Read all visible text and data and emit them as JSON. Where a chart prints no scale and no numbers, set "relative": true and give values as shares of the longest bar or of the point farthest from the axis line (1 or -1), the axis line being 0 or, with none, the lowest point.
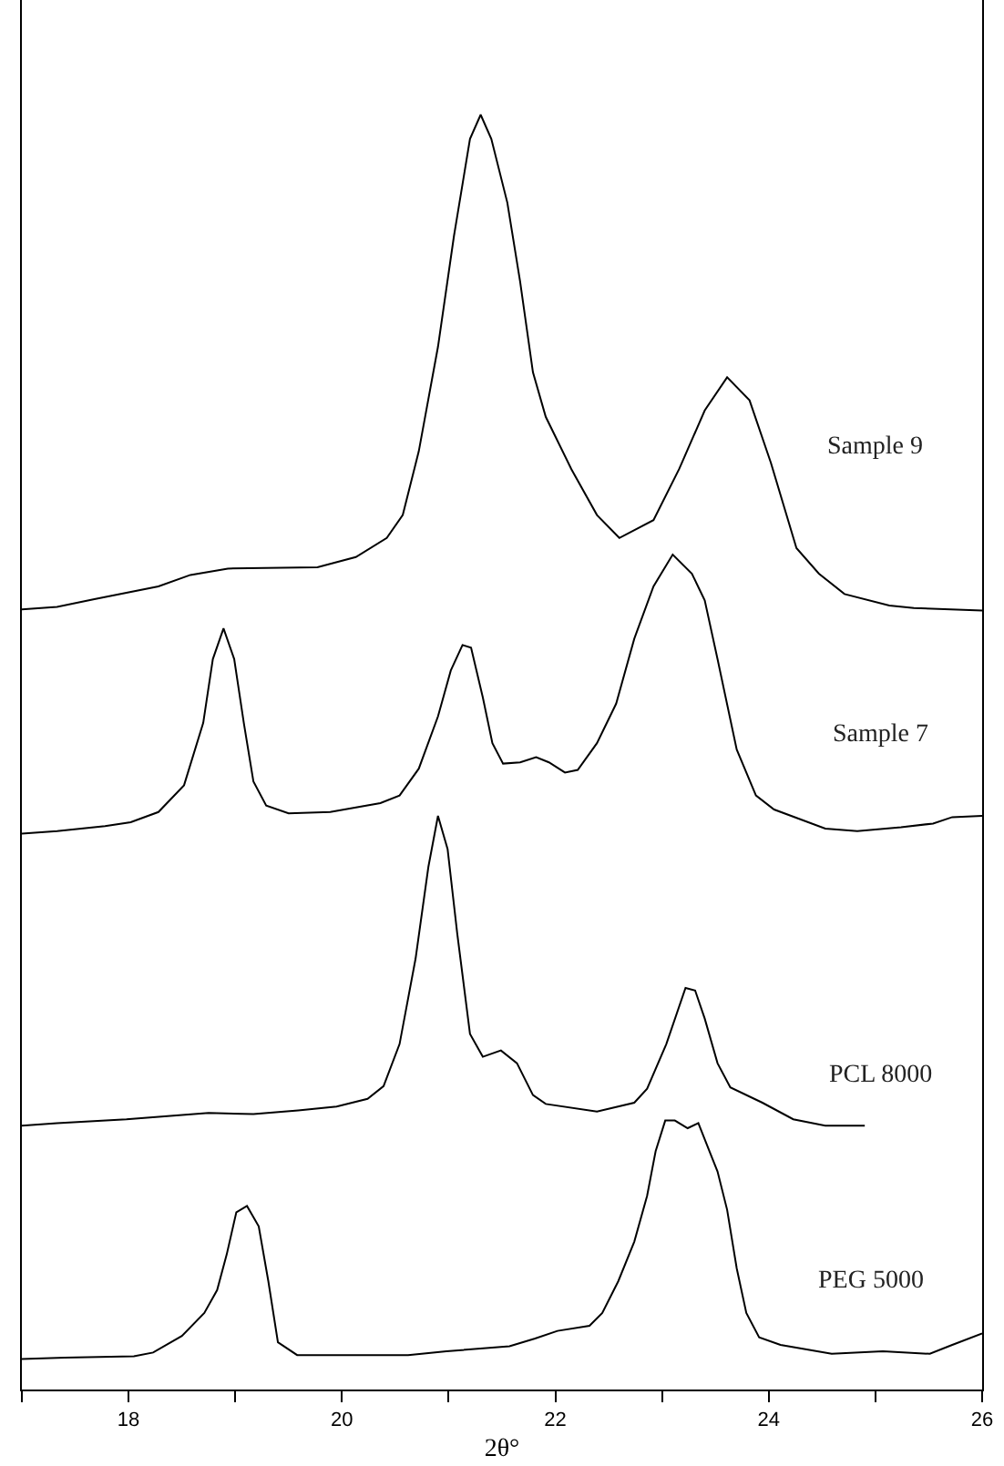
{
  "chart_data": {
    "type": "line",
    "relative": true,
    "xlabel": "2θ°",
    "xlim": [
      17,
      26
    ],
    "xticks": [
      {
        "value": 17,
        "label": null
      },
      18,
      {
        "value": 19,
        "label": null
      },
      20,
      {
        "value": 21,
        "label": null
      },
      22,
      {
        "value": 23,
        "label": null
      },
      24,
      {
        "value": 25,
        "label": null
      },
      26
    ],
    "legend": false,
    "marker": "none",
    "line_style": "solid",
    "tick_labels": "x",
    "series": [
      {
        "name": "Sample 9",
        "color": "#000000",
        "x": [
          17.0,
          17.33,
          17.68,
          18.28,
          18.58,
          18.93,
          19.77,
          20.13,
          20.42,
          20.57,
          20.72,
          20.9,
          21.05,
          21.2,
          21.3,
          21.4,
          21.55,
          21.67,
          21.79,
          21.91,
          22.15,
          22.39,
          22.6,
          22.92,
          23.16,
          23.4,
          23.61,
          23.82,
          24.02,
          24.26,
          24.47,
          24.71,
          25.13,
          25.36,
          26.0
        ],
        "values": [
          0.612,
          0.614,
          0.62,
          0.63,
          0.639,
          0.644,
          0.645,
          0.653,
          0.668,
          0.686,
          0.736,
          0.818,
          0.905,
          0.981,
          1.0,
          0.981,
          0.931,
          0.869,
          0.798,
          0.763,
          0.722,
          0.686,
          0.668,
          0.682,
          0.722,
          0.768,
          0.794,
          0.776,
          0.727,
          0.66,
          0.64,
          0.624,
          0.615,
          0.613,
          0.611
        ]
      },
      {
        "name": "Sample 7",
        "color": "#000000",
        "x": [
          17.0,
          17.33,
          17.78,
          18.02,
          18.28,
          18.52,
          18.7,
          18.79,
          18.89,
          18.99,
          19.08,
          19.17,
          19.29,
          19.5,
          19.89,
          20.36,
          20.54,
          20.72,
          20.9,
          21.02,
          21.13,
          21.21,
          21.32,
          21.41,
          21.51,
          21.67,
          21.82,
          21.94,
          22.09,
          22.21,
          22.39,
          22.57,
          22.74,
          22.92,
          23.1,
          23.28,
          23.4,
          23.52,
          23.7,
          23.88,
          24.05,
          24.53,
          24.83,
          25.24,
          25.54,
          25.72,
          26.0
        ],
        "values": [
          0.436,
          0.438,
          0.442,
          0.445,
          0.453,
          0.474,
          0.523,
          0.573,
          0.597,
          0.573,
          0.523,
          0.477,
          0.458,
          0.452,
          0.453,
          0.46,
          0.466,
          0.487,
          0.528,
          0.564,
          0.584,
          0.582,
          0.543,
          0.507,
          0.491,
          0.492,
          0.496,
          0.492,
          0.484,
          0.486,
          0.507,
          0.538,
          0.589,
          0.63,
          0.655,
          0.64,
          0.619,
          0.573,
          0.502,
          0.466,
          0.455,
          0.44,
          0.438,
          0.441,
          0.444,
          0.449,
          0.45
        ]
      },
      {
        "name": "PCL 8000",
        "color": "#000000",
        "x": [
          17.0,
          17.33,
          17.98,
          18.75,
          19.17,
          19.59,
          19.95,
          20.24,
          20.39,
          20.54,
          20.69,
          20.81,
          20.9,
          20.99,
          21.08,
          21.2,
          21.32,
          21.49,
          21.64,
          21.79,
          21.91,
          22.39,
          22.74,
          22.86,
          23.04,
          23.22,
          23.31,
          23.4,
          23.52,
          23.64,
          23.94,
          24.23,
          24.53,
          24.74,
          24.9
        ],
        "values": [
          0.207,
          0.209,
          0.212,
          0.217,
          0.216,
          0.219,
          0.222,
          0.228,
          0.238,
          0.271,
          0.338,
          0.41,
          0.45,
          0.424,
          0.358,
          0.279,
          0.261,
          0.266,
          0.256,
          0.231,
          0.224,
          0.218,
          0.225,
          0.236,
          0.271,
          0.315,
          0.313,
          0.291,
          0.256,
          0.237,
          0.225,
          0.212,
          0.207,
          0.207,
          0.207
        ]
      },
      {
        "name": "PEG 5000",
        "color": "#000000",
        "x": [
          17.0,
          17.4,
          18.05,
          18.23,
          18.5,
          18.71,
          18.83,
          18.92,
          19.01,
          19.11,
          19.22,
          19.31,
          19.4,
          19.58,
          20.62,
          20.98,
          21.57,
          21.81,
          22.02,
          22.32,
          22.44,
          22.59,
          22.74,
          22.86,
          22.94,
          23.03,
          23.12,
          23.24,
          23.34,
          23.42,
          23.52,
          23.61,
          23.7,
          23.79,
          23.91,
          24.11,
          24.59,
          25.07,
          25.51,
          25.72,
          26.0
        ],
        "values": [
          0.024,
          0.025,
          0.026,
          0.029,
          0.042,
          0.06,
          0.078,
          0.106,
          0.139,
          0.144,
          0.128,
          0.085,
          0.037,
          0.027,
          0.027,
          0.03,
          0.034,
          0.04,
          0.046,
          0.05,
          0.06,
          0.085,
          0.116,
          0.152,
          0.187,
          0.211,
          0.211,
          0.205,
          0.209,
          0.192,
          0.171,
          0.141,
          0.095,
          0.06,
          0.041,
          0.035,
          0.028,
          0.03,
          0.028,
          0.035,
          0.044
        ]
      }
    ]
  }
}
